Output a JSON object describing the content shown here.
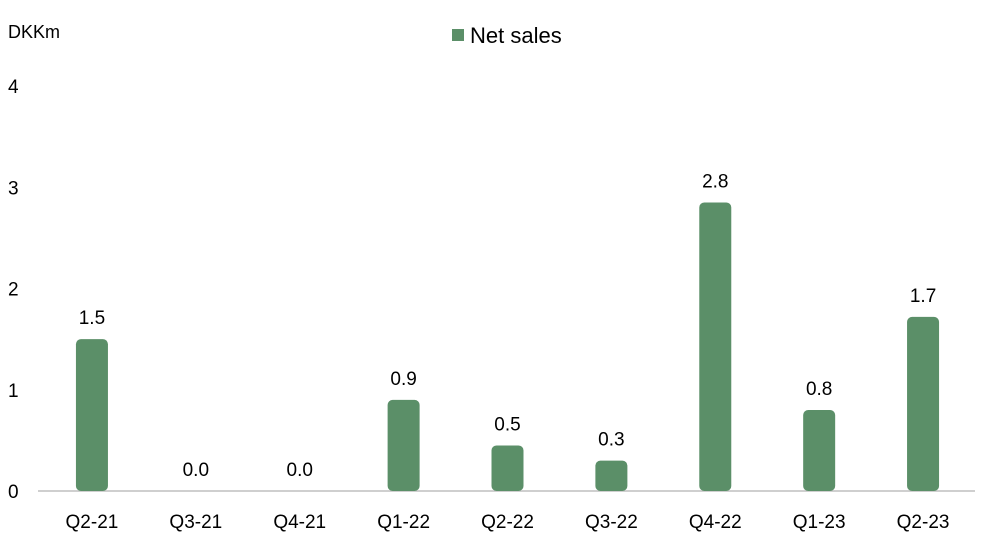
{
  "chart_data": {
    "type": "bar",
    "unit_label": "DKKm",
    "legend": {
      "position": "top-center"
    },
    "series": [
      {
        "name": "Net sales",
        "color": "#5b8f68",
        "values": [
          1.5,
          0.0,
          0.0,
          0.9,
          0.45,
          0.3,
          2.85,
          0.8,
          1.72
        ],
        "labels": [
          "1.5",
          "0.0",
          "0.0",
          "0.9",
          "0.5",
          "0.3",
          "2.8",
          "0.8",
          "1.7"
        ]
      }
    ],
    "categories": [
      "Q2-21",
      "Q3-21",
      "Q4-21",
      "Q1-22",
      "Q2-22",
      "Q3-22",
      "Q4-22",
      "Q1-23",
      "Q2-23"
    ],
    "yticks": [
      "0",
      "1",
      "2",
      "3",
      "4"
    ],
    "ylim": [
      0,
      4
    ],
    "grid": false
  }
}
